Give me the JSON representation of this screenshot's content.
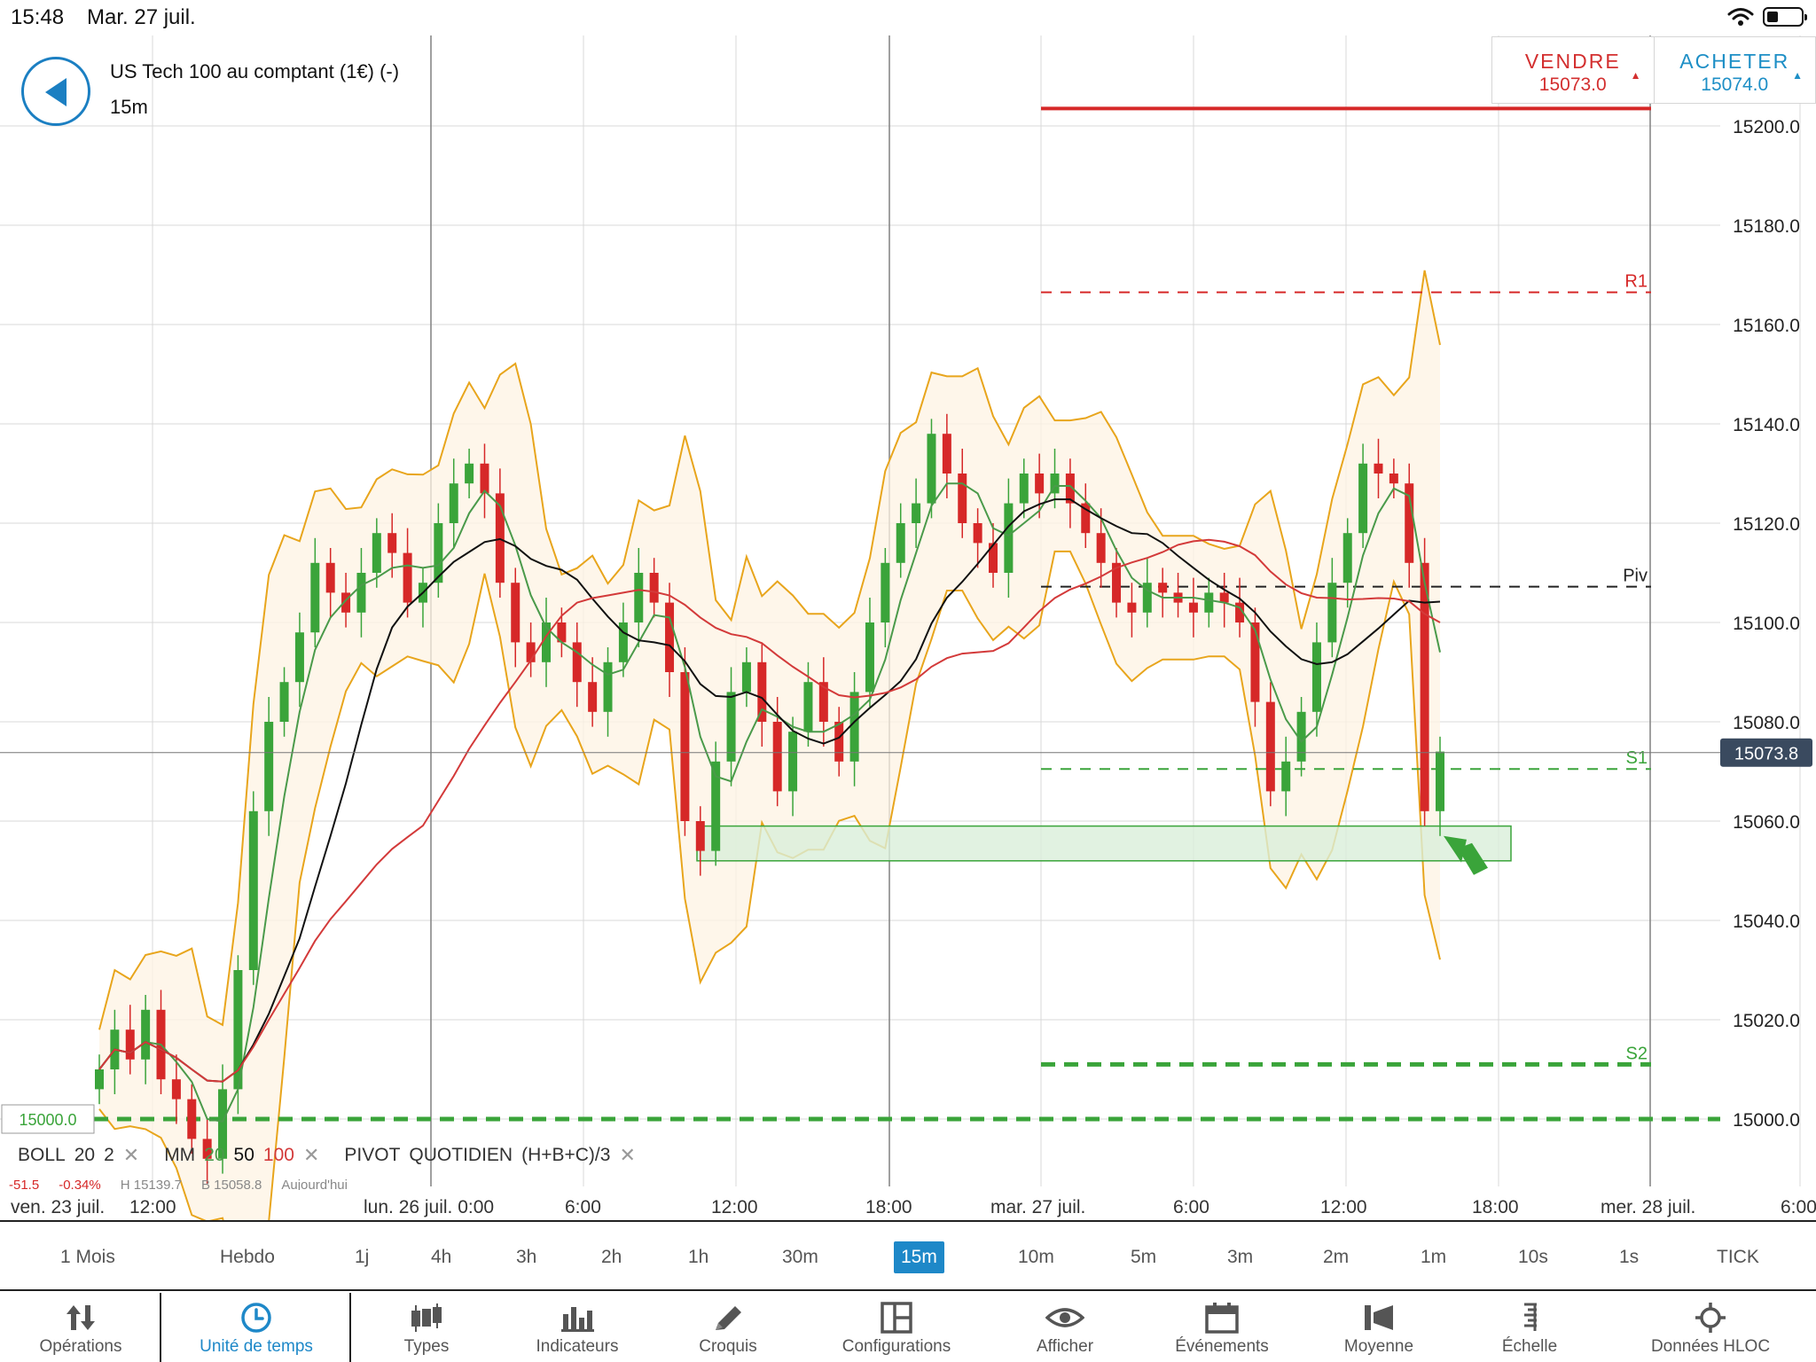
{
  "status_bar": {
    "time": "15:48",
    "date": "Mar. 27 juil."
  },
  "header": {
    "instrument": "US Tech 100 au comptant (1€) (-)",
    "timeframe": "15m"
  },
  "trade": {
    "sell_label": "VENDRE",
    "sell_price": "15073.0",
    "buy_label": "ACHETER",
    "buy_price": "15074.0"
  },
  "colors": {
    "up": "#3aa43a",
    "down": "#d62828",
    "accent": "#1e88c8",
    "band": "#e8a51c",
    "mm20": "#4a9a4a",
    "mm50": "#111111",
    "mm100": "#d33a3a"
  },
  "chart_data": {
    "type": "candlestick",
    "title": "",
    "ylim": [
      14987,
      15223
    ],
    "y_ticks": [
      15200,
      15180,
      15160,
      15140,
      15120,
      15100,
      15080,
      15060,
      15040,
      15020,
      15000
    ],
    "y_tick_labels": [
      "15200.0",
      "15180.0",
      "15160.0",
      "15140.0",
      "15120.0",
      "15100.0",
      "15080.0",
      "15060.0",
      "15040.0",
      "15020.0",
      "15000.0"
    ],
    "current_price": 15073.8,
    "current_price_label": "15073.8",
    "left_marker": 15000.0,
    "left_marker_label": "15000.0",
    "levels": [
      {
        "name": "R1",
        "label": "R1",
        "value": 15166.5,
        "color": "#d62828",
        "style": "dashed"
      },
      {
        "name": "Piv",
        "label": "Piv",
        "value": 15107.2,
        "color": "#222222",
        "style": "dashed"
      },
      {
        "name": "S1",
        "label": "S1",
        "value": 15070.5,
        "color": "#3aa43a",
        "style": "dashed"
      },
      {
        "name": "S2",
        "label": "S2",
        "value": 15011.0,
        "color": "#3aa43a",
        "style": "dashed-thick"
      },
      {
        "name": "resistance",
        "label": "",
        "value": 15203.5,
        "color": "#d62828",
        "style": "solid"
      },
      {
        "name": "support-15000",
        "label": "",
        "value": 15000.0,
        "color": "#3aa43a",
        "style": "dashed-thick"
      }
    ],
    "support_zone": {
      "from": 15052,
      "to": 15059
    },
    "x_labels": [
      {
        "label": "ven. 23 juil."
      },
      {
        "label": "12:00"
      },
      {
        "label": "lun. 26 juil. 0:00"
      },
      {
        "label": "6:00"
      },
      {
        "label": "12:00"
      },
      {
        "label": "18:00"
      },
      {
        "label": "mar. 27 juil."
      },
      {
        "label": "6:00"
      },
      {
        "label": "12:00"
      },
      {
        "label": "18:00"
      },
      {
        "label": "mer. 28 juil."
      },
      {
        "label": "6:00"
      }
    ],
    "price_path": [
      15010,
      15018,
      15012,
      15022,
      15008,
      15004,
      14996,
      14992,
      15006,
      15030,
      15062,
      15080,
      15088,
      15098,
      15112,
      15106,
      15102,
      15110,
      15118,
      15114,
      15104,
      15108,
      15120,
      15128,
      15132,
      15126,
      15108,
      15096,
      15092,
      15100,
      15096,
      15088,
      15082,
      15092,
      15100,
      15110,
      15104,
      15090,
      15060,
      15054,
      15072,
      15086,
      15092,
      15080,
      15066,
      15078,
      15088,
      15080,
      15072,
      15086,
      15100,
      15112,
      15120,
      15124,
      15138,
      15130,
      15120,
      15116,
      15110,
      15124,
      15130,
      15126,
      15130,
      15124,
      15118,
      15112,
      15104,
      15102,
      15108,
      15106,
      15104,
      15102,
      15106,
      15104,
      15100,
      15084,
      15066,
      15072,
      15082,
      15096,
      15108,
      15118,
      15132,
      15130,
      15128,
      15112,
      15062,
      15074
    ]
  },
  "indicators": {
    "boll": {
      "name": "BOLL",
      "period": "20",
      "dev": "2"
    },
    "mm": {
      "name": "MM",
      "p1": "20",
      "p2": "50",
      "p3": "100"
    },
    "pivot": {
      "name": "PIVOT",
      "period": "QUOTIDIEN",
      "formula": "(H+B+C)/3"
    },
    "close_glyph": "✕",
    "extra": [
      "-51.5",
      "-0.34%",
      "H 15139.7",
      "B 15058.8",
      "Aujourd'hui"
    ]
  },
  "timeframes": [
    {
      "label": "1 Mois"
    },
    {
      "label": "Hebdo"
    },
    {
      "label": "1j"
    },
    {
      "label": "4h"
    },
    {
      "label": "3h"
    },
    {
      "label": "2h"
    },
    {
      "label": "1h"
    },
    {
      "label": "30m"
    },
    {
      "label": "15m",
      "active": true
    },
    {
      "label": "10m"
    },
    {
      "label": "5m"
    },
    {
      "label": "3m"
    },
    {
      "label": "2m"
    },
    {
      "label": "1m"
    },
    {
      "label": "10s"
    },
    {
      "label": "1s"
    },
    {
      "label": "TICK"
    }
  ],
  "nav": [
    {
      "label": "Opérations",
      "icon": "sort-arrows-icon"
    },
    {
      "label": "Unité de temps",
      "icon": "clock-icon",
      "active": true
    },
    {
      "label": "Types",
      "icon": "candlestick-icon"
    },
    {
      "label": "Indicateurs",
      "icon": "bar-chart-icon"
    },
    {
      "label": "Croquis",
      "icon": "pencil-icon"
    },
    {
      "label": "Configurations",
      "icon": "layout-icon"
    },
    {
      "label": "Afficher",
      "icon": "eye-icon"
    },
    {
      "label": "Événements",
      "icon": "calendar-icon"
    },
    {
      "label": "Moyenne",
      "icon": "volume-icon"
    },
    {
      "label": "Échelle",
      "icon": "scale-icon"
    },
    {
      "label": "Données HLOC",
      "icon": "crosshair-icon"
    }
  ]
}
